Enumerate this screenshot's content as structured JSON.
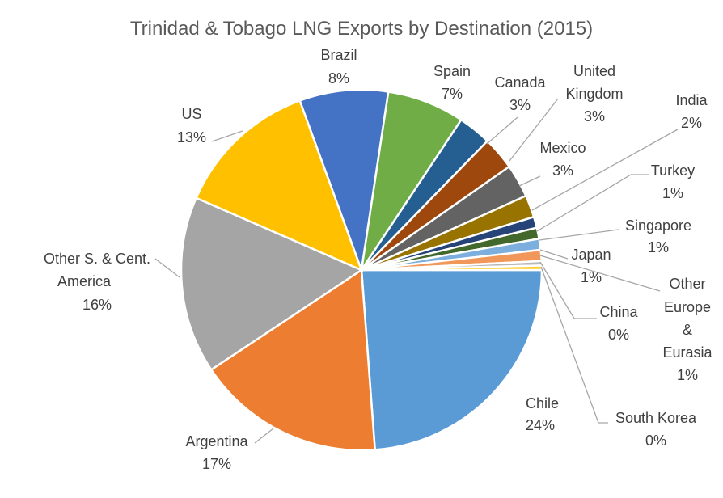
{
  "chart_data": {
    "type": "pie",
    "title": "Trinidad & Tobago LNG Exports by Destination (2015)",
    "slices": [
      {
        "name": "Chile",
        "value": 24,
        "percent_label": "24%",
        "color": "#5b9bd5"
      },
      {
        "name": "Argentina",
        "value": 17,
        "percent_label": "17%",
        "color": "#ed7d31"
      },
      {
        "name": "Other S. & Cent. America",
        "value": 16,
        "percent_label": "16%",
        "color": "#a5a5a5"
      },
      {
        "name": "US",
        "value": 13,
        "percent_label": "13%",
        "color": "#ffc000"
      },
      {
        "name": "Brazil",
        "value": 8,
        "percent_label": "8%",
        "color": "#4472c4"
      },
      {
        "name": "Spain",
        "value": 7,
        "percent_label": "7%",
        "color": "#70ad47"
      },
      {
        "name": "Canada",
        "value": 3,
        "percent_label": "3%",
        "color": "#255e91"
      },
      {
        "name": "United Kingdom",
        "value": 3,
        "percent_label": "3%",
        "color": "#9e480e"
      },
      {
        "name": "Mexico",
        "value": 3,
        "percent_label": "3%",
        "color": "#636363"
      },
      {
        "name": "India",
        "value": 2,
        "percent_label": "2%",
        "color": "#997300"
      },
      {
        "name": "Turkey",
        "value": 1,
        "percent_label": "1%",
        "color": "#264478"
      },
      {
        "name": "Singapore",
        "value": 1,
        "percent_label": "1%",
        "color": "#43682b"
      },
      {
        "name": "Japan",
        "value": 1,
        "percent_label": "1%",
        "color": "#7cafdd"
      },
      {
        "name": "Other Europe & Eurasia",
        "value": 1,
        "percent_label": "1%",
        "color": "#f1975a"
      },
      {
        "name": "China",
        "value": 0.4,
        "percent_label": "0%",
        "color": "#b7b7b7"
      },
      {
        "name": "South Korea",
        "value": 0.4,
        "percent_label": "0%",
        "color": "#ffcd33"
      }
    ],
    "legend": "none"
  }
}
